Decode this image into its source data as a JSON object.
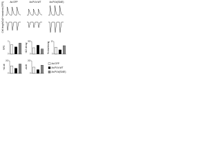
{
  "columns": [
    "Ad.GFP",
    "Ad.PLN-WT",
    "Ad.PLN(S16E)"
  ],
  "trace_labels": [
    "Ca2+ transient (F/F0)",
    "Cell length"
  ],
  "chart_data": [
    {
      "type": "bar",
      "ylabel": "F/F0",
      "categories": [
        null,
        null,
        null
      ],
      "values": [
        2.2,
        1.7,
        2.6
      ],
      "colors": [
        "#ffffff",
        "#000000",
        "#888888"
      ],
      "ylim": [
        0,
        3
      ],
      "yticks": [
        0,
        3
      ]
    },
    {
      "type": "bar",
      "ylabel": "t1/2 decay",
      "categories": [
        null,
        null,
        null
      ],
      "values": [
        150,
        210,
        120
      ],
      "colors": [
        "#ffffff",
        "#000000",
        "#888888"
      ],
      "ylim": [
        0,
        300
      ],
      "yticks": [
        0,
        300
      ]
    },
    {
      "type": "bar",
      "ylabel": "% shortening",
      "categories": [
        null,
        null,
        null
      ],
      "values": [
        8,
        5,
        10
      ],
      "colors": [
        "#ffffff",
        "#000000",
        "#888888"
      ],
      "ylim": [
        0,
        15
      ],
      "yticks": [
        0,
        15
      ]
    },
    {
      "type": "bar",
      "ylabel": "+dL/dt",
      "categories": [
        null,
        null,
        null
      ],
      "values": [
        120,
        80,
        150
      ],
      "colors": [
        "#ffffff",
        "#000000",
        "#888888"
      ],
      "ylim": [
        0,
        200
      ],
      "yticks": [
        0,
        200
      ]
    },
    {
      "type": "bar",
      "ylabel": "-dL/dt",
      "categories": [
        null,
        null,
        null
      ],
      "values": [
        100,
        60,
        130
      ],
      "colors": [
        "#ffffff",
        "#000000",
        "#888888"
      ],
      "ylim": [
        0,
        200
      ],
      "yticks": [
        0,
        200
      ]
    }
  ],
  "legend": {
    "entries": [
      "Ad.GFP",
      "Ad.PLN-WT",
      "Ad.PLN(S16E)"
    ],
    "colors": [
      "#ffffff",
      "#000000",
      "#888888"
    ]
  }
}
